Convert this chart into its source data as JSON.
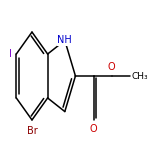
{
  "background_color": "#ffffff",
  "bond_color": "#000000",
  "atom_colors": {
    "N": "#0000cc",
    "O": "#cc0000",
    "Br": "#8b0000",
    "I": "#7a00cc"
  },
  "figsize": [
    1.52,
    1.52
  ],
  "dpi": 100,
  "lw": 1.1,
  "font_size": 7.0
}
